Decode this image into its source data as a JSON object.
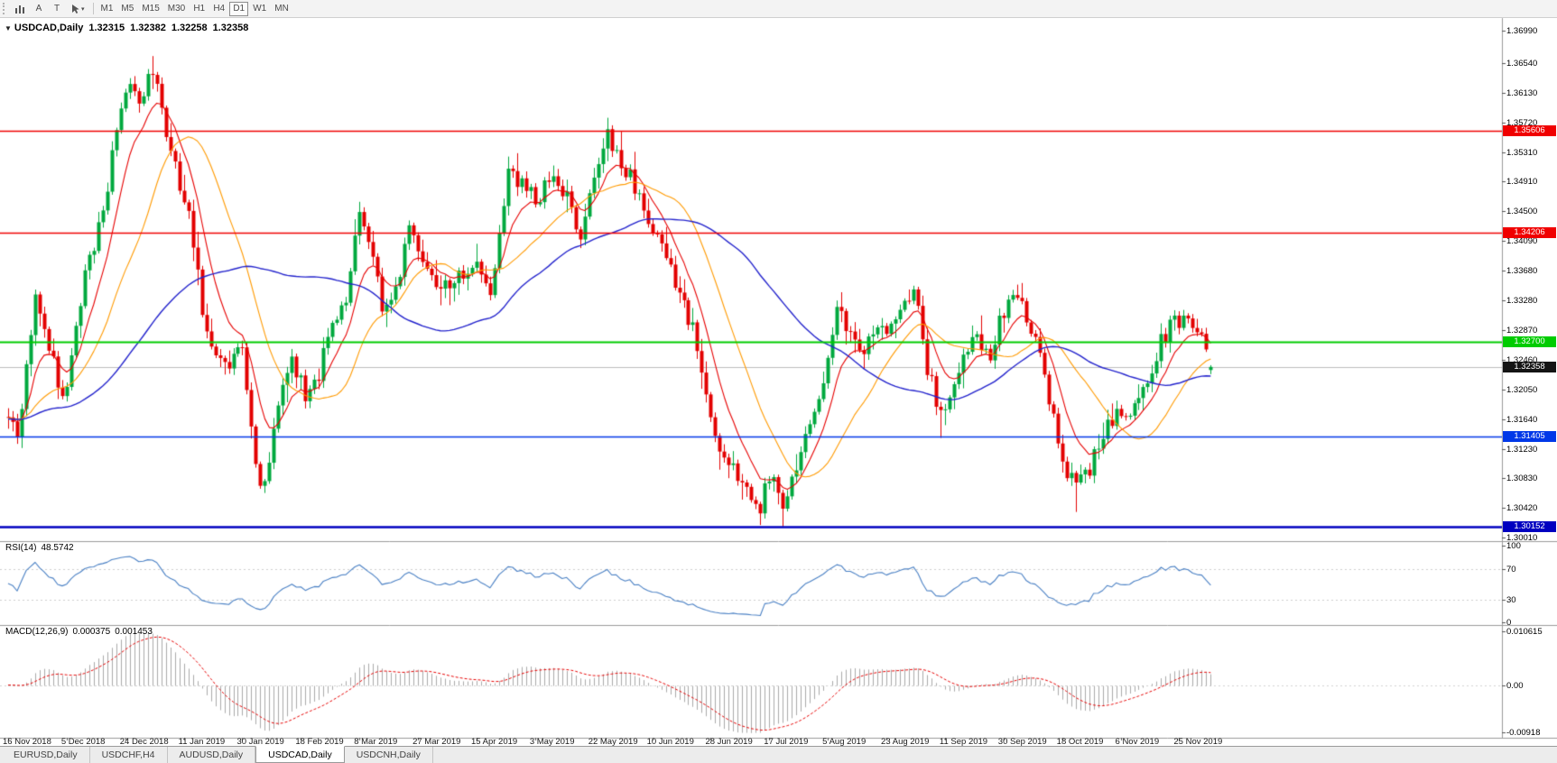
{
  "toolbar": {
    "tool_a": "A",
    "tool_t": "T",
    "timeframes": [
      "M1",
      "M5",
      "M15",
      "M30",
      "H1",
      "H4",
      "D1",
      "W1",
      "MN"
    ],
    "active_timeframe": "D1"
  },
  "chart": {
    "title_symbol": "USDCAD,Daily",
    "ohlc": {
      "open": "1.32315",
      "high": "1.32382",
      "low": "1.32258",
      "close": "1.32358"
    },
    "price_axis": [
      "1.36990",
      "1.36540",
      "1.36130",
      "1.35720",
      "1.35310",
      "1.34910",
      "1.34500",
      "1.34090",
      "1.33680",
      "1.33280",
      "1.32870",
      "1.32460",
      "1.32050",
      "1.31640",
      "1.31230",
      "1.30830",
      "1.30420",
      "1.30010"
    ],
    "hlines": [
      {
        "label": "1.35606",
        "value": 1.35606,
        "color": "#f00000",
        "width": 1.3
      },
      {
        "label": "1.34206",
        "value": 1.34206,
        "color": "#f00000",
        "width": 1.3
      },
      {
        "label": "1.32700",
        "value": 1.327,
        "color": "#00cc00",
        "width": 2
      },
      {
        "label": "1.31405",
        "value": 1.31405,
        "color": "#0038e8",
        "width": 1.3
      },
      {
        "label": "1.30152",
        "value": 1.30152,
        "color": "#0000c0",
        "width": 2.4
      }
    ],
    "current_price": {
      "label": "1.32358",
      "value": 1.32358,
      "line_color": "#bdbdbd",
      "badge_color": "#141414"
    }
  },
  "rsi": {
    "name": "RSI(14)",
    "value": "48.5742",
    "color": "#4a80c4",
    "levels": [
      70,
      30
    ],
    "axis": [
      {
        "label": "100",
        "value": 100
      },
      {
        "label": "70",
        "value": 70
      },
      {
        "label": "30",
        "value": 30
      },
      {
        "label": "0",
        "value": 0
      }
    ]
  },
  "macd": {
    "name": "MACD(12,26,9)",
    "value_main": "0.000375",
    "value_signal": "0.001453",
    "hist_color": "#aaaaaa",
    "signal_color": "#e60000",
    "axis": [
      {
        "label": "0.010615",
        "value": 0.010615
      },
      {
        "label": "0.00",
        "value": 0
      },
      {
        "label": "-0.00918",
        "value": -0.00918
      }
    ]
  },
  "time_axis": [
    "16 Nov 2018",
    "5 Dec 2018",
    "24 Dec 2018",
    "11 Jan 2019",
    "30 Jan 2019",
    "18 Feb 2019",
    "8 Mar 2019",
    "27 Mar 2019",
    "15 Apr 2019",
    "3 May 2019",
    "22 May 2019",
    "10 Jun 2019",
    "28 Jun 2019",
    "17 Jul 2019",
    "5 Aug 2019",
    "23 Aug 2019",
    "11 Sep 2019",
    "30 Sep 2019",
    "18 Oct 2019",
    "6 Nov 2019",
    "25 Nov 2019"
  ],
  "tabs": [
    {
      "label": "EURUSD,Daily",
      "active": false
    },
    {
      "label": "USDCHF,H4",
      "active": false
    },
    {
      "label": "AUDUSD,Daily",
      "active": false
    },
    {
      "label": "USDCAD,Daily",
      "active": true
    },
    {
      "label": "USDCNH,Daily",
      "active": false
    }
  ],
  "chart_data": {
    "type": "candlestick",
    "symbol": "USDCAD",
    "timeframe": "Daily",
    "n_candles": 268,
    "label_every": 13,
    "seed": 42,
    "noise": 0.0026,
    "up_color": "#00a83e",
    "down_color": "#e30000",
    "ylim": [
      1.29958,
      1.37164
    ],
    "last_candle": {
      "open": 1.32315,
      "high": 1.32382,
      "low": 1.32258,
      "close": 1.32358
    },
    "price_anchors": [
      [
        0,
        1.3165
      ],
      [
        2,
        1.313
      ],
      [
        6,
        1.333
      ],
      [
        9,
        1.327
      ],
      [
        12,
        1.3185
      ],
      [
        13,
        1.3215
      ],
      [
        17,
        1.336
      ],
      [
        21,
        1.345
      ],
      [
        24,
        1.356
      ],
      [
        27,
        1.3635
      ],
      [
        29,
        1.359
      ],
      [
        32,
        1.365
      ],
      [
        35,
        1.3565
      ],
      [
        38,
        1.348
      ],
      [
        40,
        1.344
      ],
      [
        44,
        1.3275
      ],
      [
        48,
        1.3235
      ],
      [
        52,
        1.3255
      ],
      [
        55,
        1.3095
      ],
      [
        57,
        1.3075
      ],
      [
        60,
        1.3185
      ],
      [
        63,
        1.3245
      ],
      [
        66,
        1.3195
      ],
      [
        69,
        1.3225
      ],
      [
        72,
        1.3305
      ],
      [
        75,
        1.333
      ],
      [
        78,
        1.3445
      ],
      [
        80,
        1.342
      ],
      [
        83,
        1.3315
      ],
      [
        86,
        1.3345
      ],
      [
        89,
        1.3425
      ],
      [
        91,
        1.3405
      ],
      [
        94,
        1.3365
      ],
      [
        97,
        1.3345
      ],
      [
        100,
        1.3365
      ],
      [
        104,
        1.3385
      ],
      [
        107,
        1.333
      ],
      [
        111,
        1.3505
      ],
      [
        114,
        1.3485
      ],
      [
        117,
        1.3465
      ],
      [
        120,
        1.3495
      ],
      [
        124,
        1.347
      ],
      [
        127,
        1.342
      ],
      [
        130,
        1.349
      ],
      [
        133,
        1.3555
      ],
      [
        135,
        1.3525
      ],
      [
        138,
        1.3495
      ],
      [
        141,
        1.3455
      ],
      [
        143,
        1.3425
      ],
      [
        146,
        1.3385
      ],
      [
        149,
        1.3335
      ],
      [
        152,
        1.3285
      ],
      [
        154,
        1.3215
      ],
      [
        156,
        1.3165
      ],
      [
        159,
        1.3115
      ],
      [
        162,
        1.3085
      ],
      [
        165,
        1.3055
      ],
      [
        167,
        1.3045
      ],
      [
        169,
        1.3085
      ],
      [
        172,
        1.3045
      ],
      [
        175,
        1.3095
      ],
      [
        178,
        1.3155
      ],
      [
        181,
        1.3215
      ],
      [
        184,
        1.331
      ],
      [
        187,
        1.3285
      ],
      [
        190,
        1.3265
      ],
      [
        193,
        1.3295
      ],
      [
        195,
        1.3275
      ],
      [
        198,
        1.3315
      ],
      [
        201,
        1.3345
      ],
      [
        204,
        1.3235
      ],
      [
        207,
        1.3165
      ],
      [
        209,
        1.3195
      ],
      [
        212,
        1.3245
      ],
      [
        215,
        1.3275
      ],
      [
        218,
        1.3255
      ],
      [
        221,
        1.3315
      ],
      [
        224,
        1.3335
      ],
      [
        227,
        1.3285
      ],
      [
        230,
        1.3225
      ],
      [
        233,
        1.3135
      ],
      [
        235,
        1.3095
      ],
      [
        237,
        1.3065
      ],
      [
        240,
        1.3095
      ],
      [
        243,
        1.3145
      ],
      [
        246,
        1.3175
      ],
      [
        249,
        1.3165
      ],
      [
        252,
        1.3205
      ],
      [
        255,
        1.3255
      ],
      [
        258,
        1.3295
      ],
      [
        261,
        1.3305
      ],
      [
        264,
        1.3295
      ],
      [
        266,
        1.3262
      ],
      [
        267,
        1.32358
      ]
    ],
    "spikes": [
      {
        "i": 32,
        "high": 1.3664
      },
      {
        "i": 133,
        "high": 1.3579
      },
      {
        "i": 167,
        "low": 1.3018
      },
      {
        "i": 172,
        "low": 1.3016
      },
      {
        "i": 207,
        "low": 1.3138
      },
      {
        "i": 237,
        "low": 1.3036
      }
    ],
    "moving_averages": [
      {
        "name": "ma-fast",
        "type": "ema",
        "period": 9,
        "color": "#e60000",
        "width": 1.1
      },
      {
        "name": "ma-mid",
        "type": "sma",
        "period": 21,
        "color": "#ff9a00",
        "width": 1.1
      },
      {
        "name": "ma-slow",
        "type": "sma",
        "period": 55,
        "color": "#2323cc",
        "width": 1.4
      }
    ],
    "indicators": {
      "rsi": {
        "period": 14,
        "last": 48.5742
      },
      "macd": {
        "fast": 12,
        "slow": 26,
        "signal_period": 9,
        "last_main": 0.000375,
        "last_signal": 0.001453
      }
    }
  }
}
